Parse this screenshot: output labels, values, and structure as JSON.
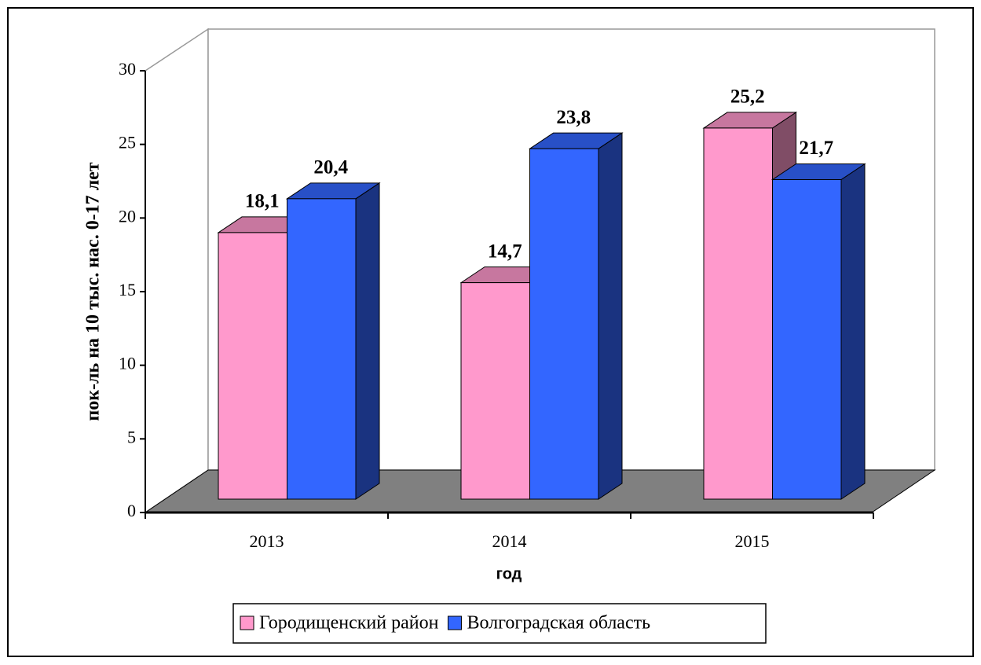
{
  "chart_data": {
    "type": "bar3d",
    "y_label": "пок-ль на 10 тыс. нас. 0-17 лет",
    "x_label": "год",
    "categories": [
      "2013",
      "2014",
      "2015"
    ],
    "series": [
      {
        "name": "Городищенский район",
        "color": "#ff99cc",
        "values": [
          18.1,
          14.7,
          25.2
        ],
        "value_labels": [
          "18,1",
          "14,7",
          "25,2"
        ]
      },
      {
        "name": "Волгоградская область",
        "color": "#3366ff",
        "values": [
          20.4,
          23.8,
          21.7
        ],
        "value_labels": [
          "20,4",
          "23,8",
          "21,7"
        ]
      }
    ],
    "ylim": [
      0,
      30
    ],
    "yticks": [
      0,
      5,
      10,
      15,
      20,
      25,
      30
    ],
    "legend": "bottom"
  }
}
